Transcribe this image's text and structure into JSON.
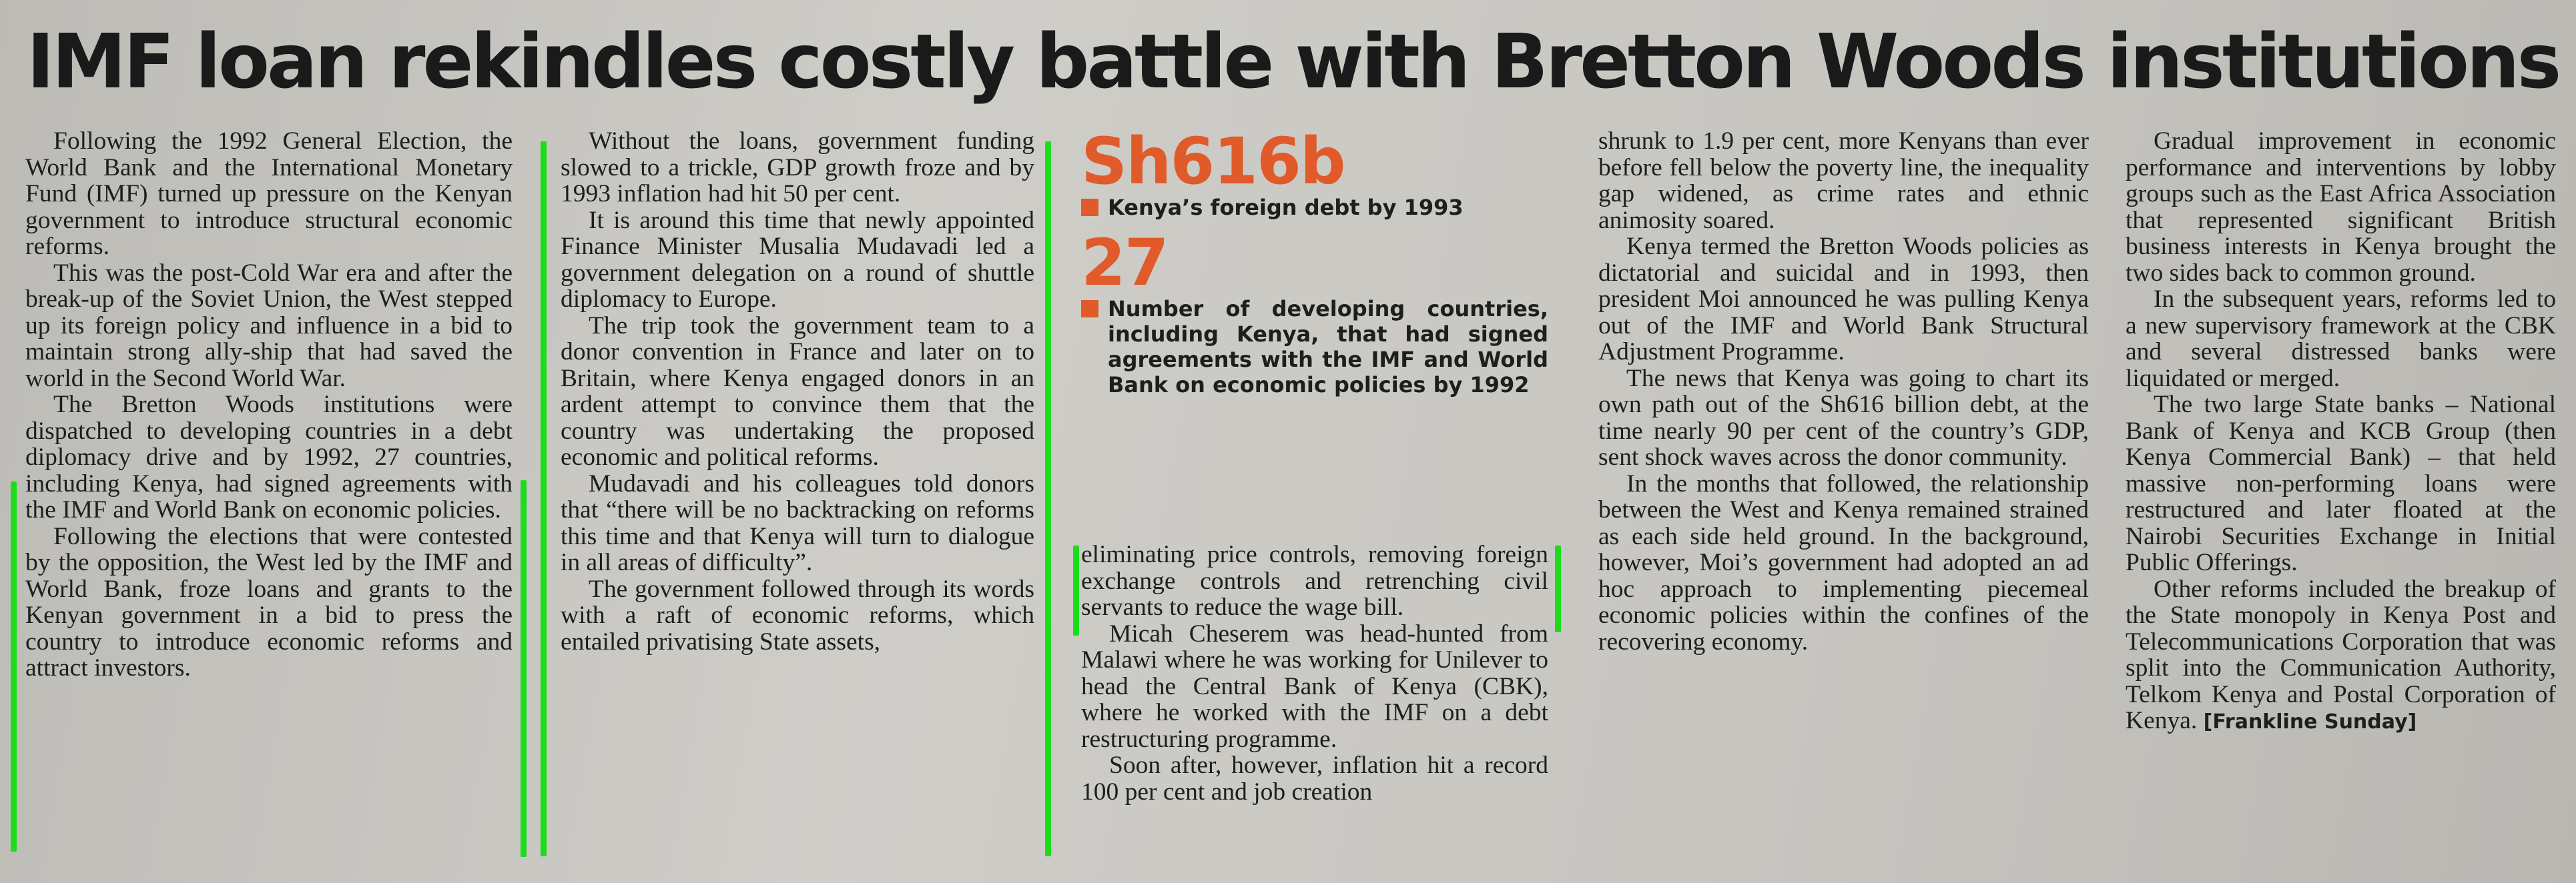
{
  "headline": "IMF loan rekindles costly battle with Bretton Woods institutions",
  "columns": {
    "c1": [
      "Following the 1992 General Election, the World Bank and the International Monetary Fund (IMF) turned up pressure on the Kenyan government to introduce structural economic reforms.",
      "This was the post-Cold War era and after the break-up of the Soviet Union, the West stepped up its foreign policy and influence in a bid to maintain strong ally-ship that had saved the world in the Second World War.",
      "The Bretton Woods institutions were dispatched to developing countries in a debt diplomacy drive and by 1992, 27 countries, including Kenya, had signed agreements with the IMF and World Bank on economic policies.",
      "Following the elections that were contested by the opposition, the West led by the IMF and World Bank, froze loans and grants to the Kenyan government in a bid to press the country to introduce economic reforms and attract investors."
    ],
    "c2": [
      "Without the loans, government funding slowed to a trickle, GDP growth froze and by 1993 inflation had hit 50 per cent.",
      "It is around this time that newly appointed Finance Minister Musalia Mudavadi led a government delegation on a round of shuttle diplomacy to Europe.",
      "The trip took the government team to a donor convention in France and later on to Britain, where Kenya engaged donors in an ardent attempt to convince them that the country was undertaking the proposed economic and political reforms.",
      "Mudavadi and his colleagues told donors that “there will be no backtracking on reforms this time and that Kenya will turn to dialogue in all areas of difficulty”.",
      "The government followed through its words with a raft of economic reforms, which entailed privatising State assets,"
    ],
    "c3": [
      "eliminating price controls, removing foreign exchange controls and retrenching civil servants to reduce the wage bill.",
      "Micah Cheserem was head-hunted from Malawi where he was working for Unilever to head the Central Bank of Kenya (CBK), where he worked with the IMF on a debt restructuring programme.",
      "Soon after, however, inflation hit a record 100 per cent and job creation"
    ],
    "c4": [
      "shrunk to 1.9 per cent, more Kenyans than ever before fell below the poverty line, the inequality gap widened, as crime rates and ethnic animosity soared.",
      "Kenya termed the Bretton Woods policies as dictatorial and suicidal and in 1993, then president Moi announced he was pulling Kenya out of the IMF and World Bank Structural Adjustment Programme.",
      "The news that Kenya was going to chart its own path out of the Sh616 billion debt, at the time nearly 90 per cent of the country’s GDP, sent shock waves across the donor community.",
      "In the months that followed, the relationship between the West and Kenya remained strained as each side held ground. In the background, however, Moi’s government had adopted an ad hoc approach to implementing piecemeal economic policies within the confines of the recovering economy."
    ],
    "c5": [
      "Gradual improvement in economic performance and interventions by lobby groups such as the East Africa Association that represented significant British business interests in Kenya brought the two sides back to common ground.",
      "In the subsequent years, reforms led to a new supervisory framework at the CBK and several distressed banks were liquidated or merged.",
      "The two large State banks – National Bank of Kenya and KCB Group (then Kenya Commercial Bank) – that held massive non-performing loans were restructured and later floated at the Nairobi Securities Exchange in Initial Public Offerings.",
      "Other reforms included the breakup of the State monopoly in Kenya Post and Telecommunications Corporation that was split into the Communication Authority, Telkom Kenya and Postal Corporation of Kenya."
    ]
  },
  "byline": "[Frankline Sunday]",
  "infobox": {
    "stat1_value": "Sh616b",
    "stat1_label": "Kenya’s foreign debt by 1993",
    "stat2_value": "27",
    "stat2_label": "Number of developing countries, including Kenya, that had signed agreements with the IMF and World Bank on economic policies by 1992",
    "accent_color": "#e05a2a"
  },
  "markers": {
    "color": "#1cdc1c"
  }
}
